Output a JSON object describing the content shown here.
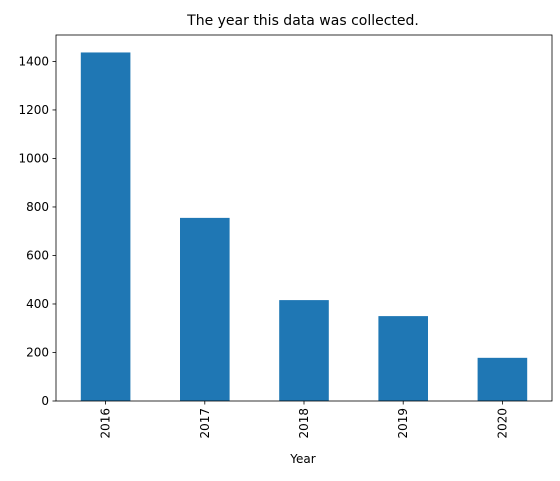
{
  "chart_data": {
    "type": "bar",
    "title": "The year this data was collected.",
    "xlabel": "Year",
    "ylabel": "",
    "categories": [
      "2016",
      "2017",
      "2018",
      "2019",
      "2020"
    ],
    "values": [
      1437,
      755,
      416,
      350,
      178
    ],
    "ylim": [
      0,
      1509
    ],
    "yticks": [
      0,
      200,
      400,
      600,
      800,
      1000,
      1200,
      1400
    ],
    "grid": false,
    "legend": "none",
    "bar_color": "#1f77b4"
  }
}
